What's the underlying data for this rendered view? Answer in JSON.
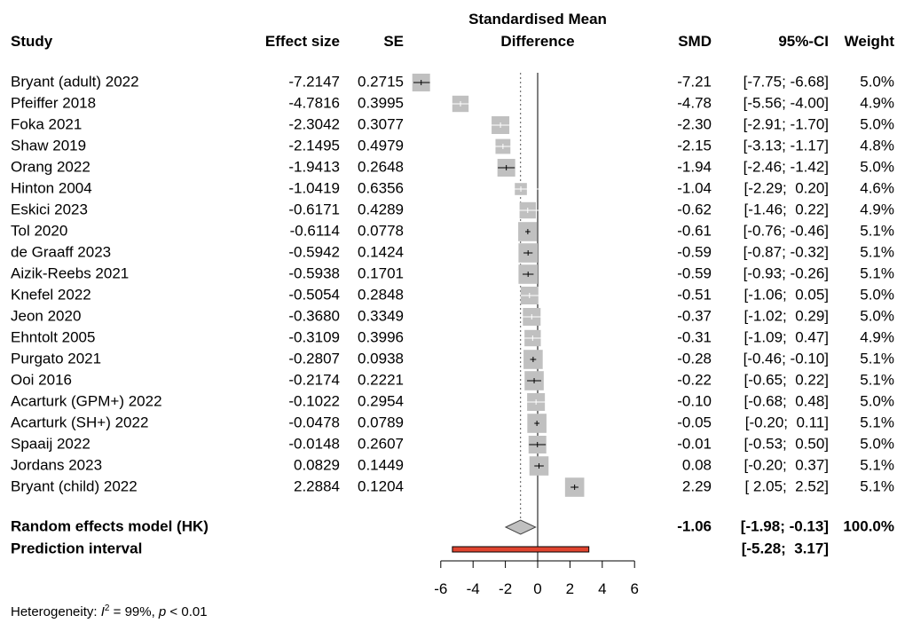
{
  "headers": {
    "study": "Study",
    "effect_size": "Effect size",
    "se": "SE",
    "plot_title_line1": "Standardised Mean",
    "plot_title_line2": "Difference",
    "smd": "SMD",
    "ci": "95%-CI",
    "weight": "Weight"
  },
  "heterogeneity": {
    "prefix": "Heterogeneity: ",
    "i2_symbol": "I",
    "i2_sup": "2",
    "i2_value": " = 99%, ",
    "p_symbol": "p",
    "p_value": " < 0.01"
  },
  "chart_data": {
    "type": "forest",
    "xlim": [
      -6,
      6
    ],
    "x_ticks": [
      "-6",
      "-4",
      "-2",
      "0",
      "2",
      "4",
      "6"
    ],
    "null_line": 0,
    "studies": [
      {
        "study": "Bryant (adult) 2022",
        "effect": "-7.2147",
        "se": "0.2715",
        "smd": "-7.21",
        "ci_text": "[-7.75; -6.68]",
        "weight": "5.0%",
        "est": -7.2147,
        "lo": -7.75,
        "hi": -6.68,
        "w": 5.0
      },
      {
        "study": "Pfeiffer 2018",
        "effect": "-4.7816",
        "se": "0.3995",
        "smd": "-4.78",
        "ci_text": "[-5.56; -4.00]",
        "weight": "4.9%",
        "est": -4.7816,
        "lo": -5.56,
        "hi": -4.0,
        "w": 4.9
      },
      {
        "study": "Foka 2021",
        "effect": "-2.3042",
        "se": "0.3077",
        "smd": "-2.30",
        "ci_text": "[-2.91; -1.70]",
        "weight": "5.0%",
        "est": -2.3042,
        "lo": -2.91,
        "hi": -1.7,
        "w": 5.0
      },
      {
        "study": "Shaw 2019",
        "effect": "-2.1495",
        "se": "0.4979",
        "smd": "-2.15",
        "ci_text": "[-3.13; -1.17]",
        "weight": "4.8%",
        "est": -2.1495,
        "lo": -3.13,
        "hi": -1.17,
        "w": 4.8
      },
      {
        "study": "Orang 2022",
        "effect": "-1.9413",
        "se": "0.2648",
        "smd": "-1.94",
        "ci_text": "[-2.46; -1.42]",
        "weight": "5.0%",
        "est": -1.9413,
        "lo": -2.46,
        "hi": -1.42,
        "w": 5.0
      },
      {
        "study": "Hinton 2004",
        "effect": "-1.0419",
        "se": "0.6356",
        "smd": "-1.04",
        "ci_text": "[-2.29;  0.20]",
        "weight": "4.6%",
        "est": -1.0419,
        "lo": -2.29,
        "hi": 0.2,
        "w": 4.6
      },
      {
        "study": "Eskici 2023",
        "effect": "-0.6171",
        "se": "0.4289",
        "smd": "-0.62",
        "ci_text": "[-1.46;  0.22]",
        "weight": "4.9%",
        "est": -0.6171,
        "lo": -1.46,
        "hi": 0.22,
        "w": 4.9
      },
      {
        "study": "Tol 2020",
        "effect": "-0.6114",
        "se": "0.0778",
        "smd": "-0.61",
        "ci_text": "[-0.76; -0.46]",
        "weight": "5.1%",
        "est": -0.6114,
        "lo": -0.76,
        "hi": -0.46,
        "w": 5.1
      },
      {
        "study": "de Graaff 2023",
        "effect": "-0.5942",
        "se": "0.1424",
        "smd": "-0.59",
        "ci_text": "[-0.87; -0.32]",
        "weight": "5.1%",
        "est": -0.5942,
        "lo": -0.87,
        "hi": -0.32,
        "w": 5.1
      },
      {
        "study": "Aizik-Reebs 2021",
        "effect": "-0.5938",
        "se": "0.1701",
        "smd": "-0.59",
        "ci_text": "[-0.93; -0.26]",
        "weight": "5.1%",
        "est": -0.5938,
        "lo": -0.93,
        "hi": -0.26,
        "w": 5.1
      },
      {
        "study": "Knefel 2022",
        "effect": "-0.5054",
        "se": "0.2848",
        "smd": "-0.51",
        "ci_text": "[-1.06;  0.05]",
        "weight": "5.0%",
        "est": -0.5054,
        "lo": -1.06,
        "hi": 0.05,
        "w": 5.0
      },
      {
        "study": "Jeon 2020",
        "effect": "-0.3680",
        "se": "0.3349",
        "smd": "-0.37",
        "ci_text": "[-1.02;  0.29]",
        "weight": "5.0%",
        "est": -0.368,
        "lo": -1.02,
        "hi": 0.29,
        "w": 5.0
      },
      {
        "study": "Ehntolt 2005",
        "effect": "-0.3109",
        "se": "0.3996",
        "smd": "-0.31",
        "ci_text": "[-1.09;  0.47]",
        "weight": "4.9%",
        "est": -0.3109,
        "lo": -1.09,
        "hi": 0.47,
        "w": 4.9
      },
      {
        "study": "Purgato 2021",
        "effect": "-0.2807",
        "se": "0.0938",
        "smd": "-0.28",
        "ci_text": "[-0.46; -0.10]",
        "weight": "5.1%",
        "est": -0.2807,
        "lo": -0.46,
        "hi": -0.1,
        "w": 5.1
      },
      {
        "study": "Ooi 2016",
        "effect": "-0.2174",
        "se": "0.2221",
        "smd": "-0.22",
        "ci_text": "[-0.65;  0.22]",
        "weight": "5.1%",
        "est": -0.2174,
        "lo": -0.65,
        "hi": 0.22,
        "w": 5.1
      },
      {
        "study": "Acarturk (GPM+) 2022",
        "effect": "-0.1022",
        "se": "0.2954",
        "smd": "-0.10",
        "ci_text": "[-0.68;  0.48]",
        "weight": "5.0%",
        "est": -0.1022,
        "lo": -0.68,
        "hi": 0.48,
        "w": 5.0
      },
      {
        "study": "Acarturk (SH+) 2022",
        "effect": "-0.0478",
        "se": "0.0789",
        "smd": "-0.05",
        "ci_text": "[-0.20;  0.11]",
        "weight": "5.1%",
        "est": -0.0478,
        "lo": -0.2,
        "hi": 0.11,
        "w": 5.1
      },
      {
        "study": "Spaaij 2022",
        "effect": "-0.0148",
        "se": "0.2607",
        "smd": "-0.01",
        "ci_text": "[-0.53;  0.50]",
        "weight": "5.0%",
        "est": -0.0148,
        "lo": -0.53,
        "hi": 0.5,
        "w": 5.0
      },
      {
        "study": "Jordans 2023",
        "effect": "0.0829",
        "se": "0.1449",
        "smd": "0.08",
        "ci_text": "[-0.20;  0.37]",
        "weight": "5.1%",
        "est": 0.0829,
        "lo": -0.2,
        "hi": 0.37,
        "w": 5.1
      },
      {
        "study": "Bryant (child) 2022",
        "effect": "2.2884",
        "se": "0.1204",
        "smd": "2.29",
        "ci_text": "[ 2.05;  2.52]",
        "weight": "5.1%",
        "est": 2.2884,
        "lo": 2.05,
        "hi": 2.52,
        "w": 5.1
      }
    ],
    "pooled": {
      "label": "Random effects model (HK)",
      "smd": "-1.06",
      "ci_text": "[-1.98; -0.13]",
      "weight": "100.0%",
      "est": -1.06,
      "lo": -1.98,
      "hi": -0.13
    },
    "prediction": {
      "label": "Prediction interval",
      "ci_text": "[-5.28;  3.17]",
      "lo": -5.28,
      "hi": 3.17
    },
    "colors": {
      "square": "#c0c0c0",
      "diamond": "#c0c0c0",
      "prediction_bar": "#e0442f"
    }
  }
}
